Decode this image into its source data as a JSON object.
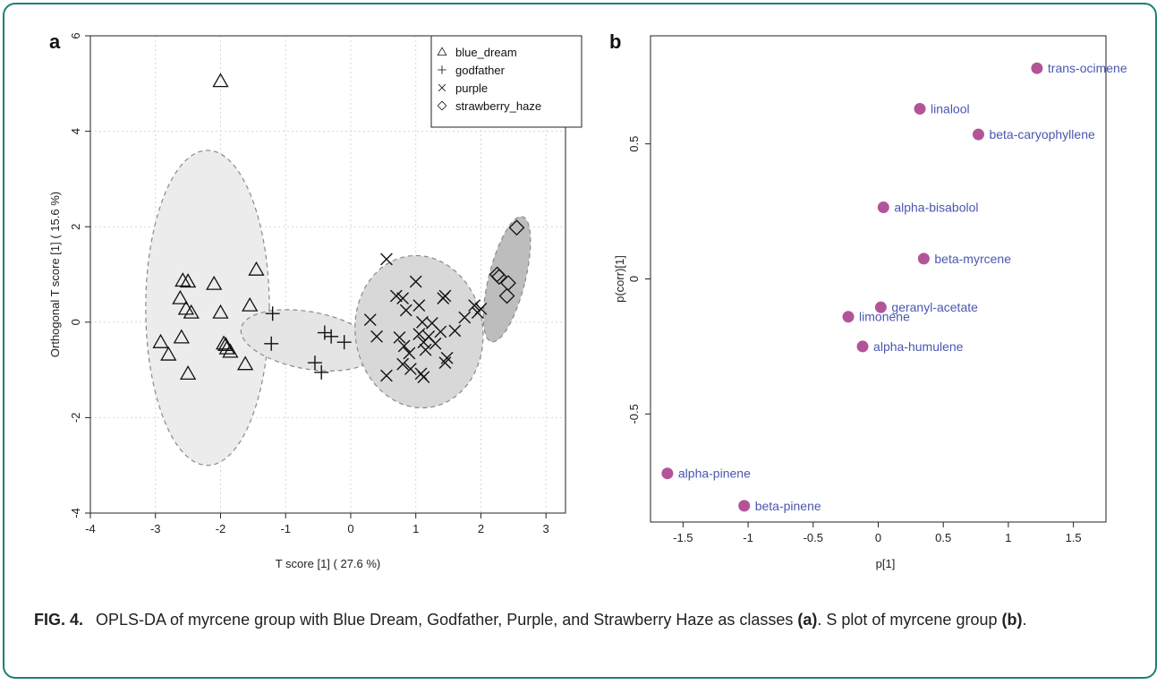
{
  "caption": {
    "figure_label": "FIG. 4.",
    "text_1": "OPLS-DA of myrcene group with Blue Dream, Godfather, Purple, and Strawberry Haze as classes ",
    "ref_a": "(a)",
    "text_2": ". S plot of myrcene group ",
    "ref_b": "(b)",
    "text_3": "."
  },
  "chart_data": [
    {
      "panel": "a",
      "type": "scatter",
      "xlabel": "T score [1] ( 27.6 %)",
      "ylabel": "Orthogonal T score [1] ( 15.6 %)",
      "xlim": [
        -4,
        3.3
      ],
      "ylim": [
        -4,
        6
      ],
      "xticks": [
        -4,
        -3,
        -2,
        -1,
        0,
        1,
        2,
        3
      ],
      "yticks": [
        -4,
        -2,
        0,
        2,
        4,
        6
      ],
      "grid": true,
      "legend_position": "top-right",
      "series": [
        {
          "name": "blue_dream",
          "marker": "triangle",
          "points": [
            [
              -2.0,
              5.05
            ],
            [
              -2.5,
              0.85
            ],
            [
              -2.58,
              0.87
            ],
            [
              -2.62,
              0.5
            ],
            [
              -2.53,
              0.28
            ],
            [
              -2.45,
              0.2
            ],
            [
              -2.1,
              0.8
            ],
            [
              -2.0,
              0.2
            ],
            [
              -1.45,
              1.1
            ],
            [
              -1.55,
              0.35
            ],
            [
              -2.92,
              -0.42
            ],
            [
              -2.8,
              -0.68
            ],
            [
              -2.6,
              -0.32
            ],
            [
              -2.5,
              -1.08
            ],
            [
              -1.95,
              -0.45
            ],
            [
              -1.9,
              -0.55
            ],
            [
              -1.85,
              -0.62
            ],
            [
              -1.62,
              -0.88
            ],
            [
              -1.92,
              -0.48
            ]
          ]
        },
        {
          "name": "godfather",
          "marker": "plus",
          "points": [
            [
              -1.2,
              0.18
            ],
            [
              -1.22,
              -0.45
            ],
            [
              -0.4,
              -0.22
            ],
            [
              -0.3,
              -0.3
            ],
            [
              -0.1,
              -0.42
            ],
            [
              -0.55,
              -0.85
            ],
            [
              -0.45,
              -1.05
            ]
          ]
        },
        {
          "name": "purple",
          "marker": "x",
          "points": [
            [
              0.55,
              1.32
            ],
            [
              0.3,
              0.05
            ],
            [
              0.4,
              -0.3
            ],
            [
              0.55,
              -1.12
            ],
            [
              0.7,
              0.55
            ],
            [
              0.8,
              0.5
            ],
            [
              0.85,
              0.25
            ],
            [
              0.75,
              -0.32
            ],
            [
              0.82,
              -0.5
            ],
            [
              0.8,
              -0.88
            ],
            [
              0.9,
              -0.65
            ],
            [
              0.92,
              -0.98
            ],
            [
              1.0,
              0.85
            ],
            [
              1.05,
              0.35
            ],
            [
              1.1,
              0.0
            ],
            [
              1.05,
              -0.25
            ],
            [
              1.12,
              -0.42
            ],
            [
              1.15,
              -0.58
            ],
            [
              1.08,
              -1.08
            ],
            [
              1.12,
              -1.15
            ],
            [
              1.2,
              -0.3
            ],
            [
              1.25,
              -0.02
            ],
            [
              1.3,
              -0.45
            ],
            [
              1.38,
              -0.2
            ],
            [
              1.42,
              0.5
            ],
            [
              1.45,
              0.55
            ],
            [
              1.48,
              -0.75
            ],
            [
              1.45,
              -0.85
            ],
            [
              1.75,
              0.1
            ],
            [
              1.9,
              0.35
            ],
            [
              1.95,
              0.2
            ],
            [
              2.0,
              0.28
            ],
            [
              1.6,
              -0.18
            ]
          ]
        },
        {
          "name": "strawberry_haze",
          "marker": "diamond",
          "points": [
            [
              2.55,
              1.98
            ],
            [
              2.25,
              1.0
            ],
            [
              2.28,
              0.95
            ],
            [
              2.42,
              0.82
            ],
            [
              2.4,
              0.55
            ]
          ]
        }
      ],
      "ellipses": [
        {
          "group": "blue_dream",
          "center": [
            -2.2,
            0.3
          ],
          "semi_axes": [
            0.95,
            3.3
          ],
          "rotation_deg": 0,
          "fill": "#ececec"
        },
        {
          "group": "godfather",
          "center": [
            -0.65,
            -0.38
          ],
          "semi_axes": [
            1.05,
            0.6
          ],
          "rotation_deg": 10,
          "fill": "#e5e5e5"
        },
        {
          "group": "purple",
          "center": [
            1.05,
            -0.2
          ],
          "semi_axes": [
            0.98,
            1.6
          ],
          "rotation_deg": -8,
          "fill": "#d8d8d8"
        },
        {
          "group": "strawberry_haze",
          "center": [
            2.4,
            0.9
          ],
          "semi_axes": [
            0.28,
            1.35
          ],
          "rotation_deg": 14,
          "fill": "#bdbdbd"
        }
      ]
    },
    {
      "panel": "b",
      "type": "scatter",
      "xlabel": "p[1]",
      "ylabel": "p(corr)[1]",
      "xlim": [
        -1.75,
        1.75
      ],
      "ylim": [
        -0.9,
        0.9
      ],
      "xticks": [
        -1.5,
        -1.0,
        -0.5,
        0.0,
        0.5,
        1.0,
        1.5
      ],
      "yticks": [
        -0.5,
        0.0,
        0.5
      ],
      "grid": false,
      "point_color": "#b35499",
      "label_color": "#4a57b0",
      "points": [
        {
          "label": "trans-ocimene",
          "x": 1.22,
          "y": 0.78
        },
        {
          "label": "linalool",
          "x": 0.32,
          "y": 0.63
        },
        {
          "label": "beta-caryophyllene",
          "x": 0.77,
          "y": 0.535
        },
        {
          "label": "alpha-bisabolol",
          "x": 0.04,
          "y": 0.265
        },
        {
          "label": "beta-myrcene",
          "x": 0.35,
          "y": 0.075
        },
        {
          "label": "geranyl-acetate",
          "x": 0.02,
          "y": -0.105
        },
        {
          "label": "limonene",
          "x": -0.23,
          "y": -0.14
        },
        {
          "label": "alpha-humulene",
          "x": -0.12,
          "y": -0.25
        },
        {
          "label": "alpha-pinene",
          "x": -1.62,
          "y": -0.72
        },
        {
          "label": "beta-pinene",
          "x": -1.03,
          "y": -0.84
        }
      ]
    }
  ]
}
